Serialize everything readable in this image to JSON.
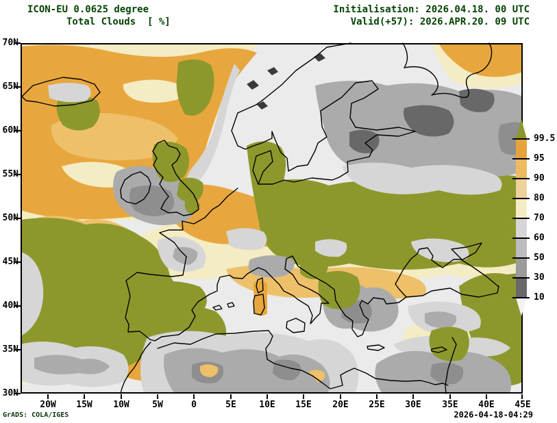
{
  "header": {
    "title_line1": "ICON-EU 0.0625 degree",
    "title_line2": "Total Clouds  [ %]",
    "init_label": "Initialisation: 2026.04.18. 00 UTC",
    "valid_label": "Valid(+57): 2026.APR.20. 09 UTC"
  },
  "map": {
    "lat_ticks": [
      "70N",
      "65N",
      "60N",
      "55N",
      "50N",
      "45N",
      "40N",
      "35N",
      "30N"
    ],
    "lon_ticks": [
      "20W",
      "15W",
      "10W",
      "5W",
      "0",
      "5E",
      "10E",
      "15E",
      "20E",
      "25E",
      "30E",
      "35E",
      "40E",
      "45E"
    ]
  },
  "colorbar": {
    "unit": "%",
    "tick_labels": [
      "99.5",
      "95",
      "90",
      "80",
      "70",
      "60",
      "50",
      "30",
      "10"
    ],
    "above_color": "#8d982c",
    "below_color": "#f3f3f3",
    "segments": [
      {
        "range": "95-99.5",
        "color": "#e7a33b"
      },
      {
        "range": "90-95",
        "color": "#ecbb60"
      },
      {
        "range": "80-90",
        "color": "#eed29b"
      },
      {
        "range": "70-80",
        "color": "#f4ecc4"
      },
      {
        "range": "60-70",
        "color": "#d6d6d6"
      },
      {
        "range": "50-60",
        "color": "#bdbdbd"
      },
      {
        "range": "30-50",
        "color": "#9b9b9b"
      },
      {
        "range": "10-30",
        "color": "#6a6a6a"
      }
    ]
  },
  "footer": {
    "left": "GrADS: COLA/IGES",
    "right": "2026-04-18-04:29"
  },
  "chart_data": {
    "type": "heatmap",
    "title": "Total Clouds  [ %]",
    "model": "ICON-EU 0.0625 degree",
    "initialisation": "2026.04.18. 00 UTC",
    "valid": "Valid(+57): 2026.APR.20. 09 UTC",
    "x_ticks": [
      "20W",
      "15W",
      "10W",
      "5W",
      "0",
      "5E",
      "10E",
      "15E",
      "20E",
      "25E",
      "30E",
      "35E",
      "40E",
      "45E"
    ],
    "y_ticks": [
      "70N",
      "65N",
      "60N",
      "55N",
      "50N",
      "45N",
      "40N",
      "35N",
      "30N"
    ],
    "scale_levels_percent": [
      10,
      30,
      50,
      60,
      70,
      80,
      90,
      95,
      99.5
    ],
    "legend_position": "right"
  }
}
